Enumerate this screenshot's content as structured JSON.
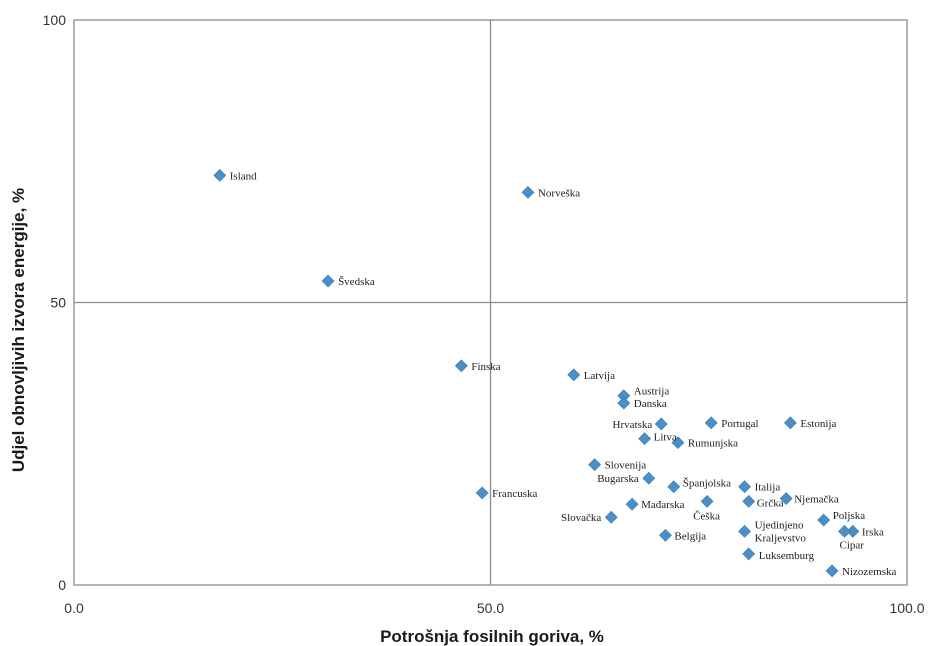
{
  "chart_data": {
    "type": "scatter",
    "xlabel": "Potrošnja fosilnih goriva, %",
    "ylabel": "Udjel obnovljivih izvora energije, %",
    "xlim": [
      0,
      100
    ],
    "ylim": [
      0,
      100
    ],
    "x_ticks": [
      "0.0",
      "50.0",
      "100.0"
    ],
    "y_ticks": [
      "0",
      "50",
      "100"
    ],
    "grid": true,
    "marker_color": "#4a8fc7",
    "points": [
      {
        "label": "Island",
        "x": 17.5,
        "y": 72.5
      },
      {
        "label": "Norveška",
        "x": 54.5,
        "y": 69.5
      },
      {
        "label": "Švedska",
        "x": 30.5,
        "y": 53.8
      },
      {
        "label": "Finska",
        "x": 46.5,
        "y": 38.8
      },
      {
        "label": "Latvija",
        "x": 60.0,
        "y": 37.2
      },
      {
        "label": "Austrija",
        "x": 66.0,
        "y": 33.5
      },
      {
        "label": "Danska",
        "x": 66.0,
        "y": 32.2
      },
      {
        "label": "Hrvatska",
        "x": 70.5,
        "y": 28.5
      },
      {
        "label": "Portugal",
        "x": 76.5,
        "y": 28.7
      },
      {
        "label": "Estonija",
        "x": 86.0,
        "y": 28.7
      },
      {
        "label": "Litva",
        "x": 68.5,
        "y": 25.9
      },
      {
        "label": "Rumunjska",
        "x": 72.5,
        "y": 25.2
      },
      {
        "label": "Slovenija",
        "x": 62.5,
        "y": 21.3
      },
      {
        "label": "Bugarska",
        "x": 69.0,
        "y": 18.9
      },
      {
        "label": "Francuska",
        "x": 49.0,
        "y": 16.3
      },
      {
        "label": "Španjolska",
        "x": 72.0,
        "y": 17.4
      },
      {
        "label": "Italija",
        "x": 80.5,
        "y": 17.4
      },
      {
        "label": "Njemačka",
        "x": 85.5,
        "y": 15.3
      },
      {
        "label": "Grčka",
        "x": 81.0,
        "y": 14.8
      },
      {
        "label": "Češka",
        "x": 76.0,
        "y": 14.8
      },
      {
        "label": "Mađarska",
        "x": 67.0,
        "y": 14.3
      },
      {
        "label": "Slovačka",
        "x": 64.5,
        "y": 12.0
      },
      {
        "label": "Poljska",
        "x": 90.0,
        "y": 11.5
      },
      {
        "label": "Irska",
        "x": 93.5,
        "y": 9.5
      },
      {
        "label": "Cipar",
        "x": 92.5,
        "y": 9.5
      },
      {
        "label": "Ujedinjeno Kraljevstvo",
        "x": 80.5,
        "y": 9.5
      },
      {
        "label": "Belgija",
        "x": 71.0,
        "y": 8.8
      },
      {
        "label": "Luksemburg",
        "x": 81.0,
        "y": 5.5
      },
      {
        "label": "Nizozemska",
        "x": 91.0,
        "y": 2.5
      }
    ]
  }
}
